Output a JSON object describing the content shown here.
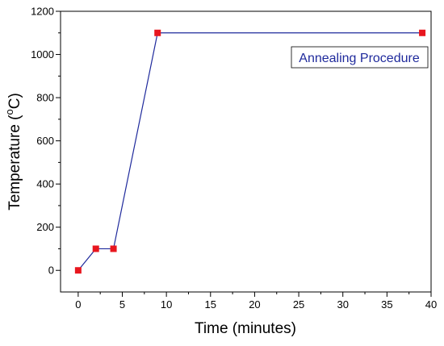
{
  "chart_data": {
    "type": "line",
    "title": "",
    "xlabel": "Time (minutes)",
    "ylabel_main": "Temperature (",
    "ylabel_sup": "o",
    "ylabel_end": "C)",
    "xlim": [
      -2,
      40
    ],
    "ylim": [
      -100,
      1200
    ],
    "x_ticks": [
      0,
      5,
      10,
      15,
      20,
      25,
      30,
      35,
      40
    ],
    "y_ticks": [
      0,
      200,
      400,
      600,
      800,
      1000,
      1200
    ],
    "grid": false,
    "legend_position": "top-right",
    "series": [
      {
        "name": "Annealing Procedure",
        "x": [
          0,
          2,
          4,
          9,
          39
        ],
        "y": [
          0,
          100,
          100,
          1100,
          1100
        ],
        "line_color": "#1f2a9c",
        "marker_color": "#e8161e",
        "marker": "square"
      }
    ]
  }
}
